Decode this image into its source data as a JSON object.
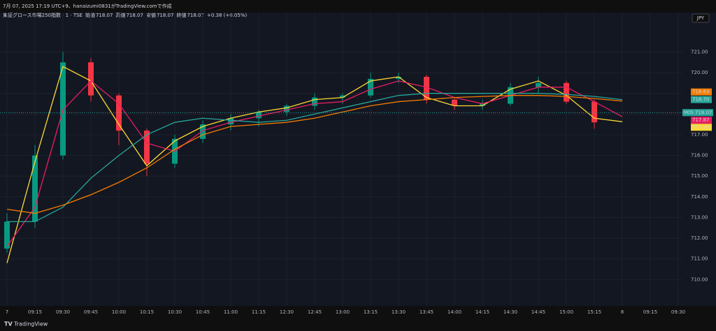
{
  "header": "7月 07, 2025 17:19 UTC+9、hanaizumi0831がTradingView.comで作成",
  "footer": "TradingView",
  "chart_data": {
    "type": "candlestick",
    "legend": {
      "symbol": "東証グロース市場250指数 · 1 · TSE",
      "fields": [
        {
          "label": "始値",
          "value": 718.07
        },
        {
          "label": "高値",
          "value": 718.07
        },
        {
          "label": "安値",
          "value": 718.07
        },
        {
          "label": "終値",
          "value": 718.07
        }
      ],
      "change": "+0.38 (+0.05%)"
    },
    "currency": "JPY",
    "categories": [
      "7",
      "09:15",
      "09:30",
      "09:45",
      "10:00",
      "10:15",
      "10:30",
      "10:45",
      "11:00",
      "11:15",
      "12:30",
      "12:45",
      "13:00",
      "13:15",
      "13:30",
      "13:45",
      "14:00",
      "14:15",
      "14:30",
      "14:45",
      "15:00",
      "15:15",
      "8",
      "09:15",
      "09:30"
    ],
    "open": [
      711.5,
      712.8,
      716.0,
      720.5,
      718.9,
      717.2,
      715.6,
      716.8,
      717.5,
      717.8,
      718.1,
      718.4,
      718.8,
      718.9,
      719.7,
      719.8,
      718.7,
      718.4,
      718.5,
      719.3,
      719.5,
      718.6,
      null,
      null,
      null
    ],
    "high": [
      713.2,
      716.5,
      721.0,
      720.7,
      719.0,
      717.3,
      717.0,
      717.7,
      718.0,
      718.2,
      718.5,
      719.0,
      719.0,
      720.0,
      720.0,
      719.9,
      718.8,
      718.7,
      719.5,
      719.8,
      719.6,
      718.7,
      null,
      null,
      null
    ],
    "low": [
      711.3,
      712.5,
      715.8,
      718.6,
      716.5,
      715.0,
      715.4,
      716.6,
      717.2,
      717.4,
      717.9,
      718.2,
      718.5,
      718.8,
      719.5,
      718.5,
      718.2,
      718.2,
      718.4,
      719.0,
      718.5,
      717.3,
      null,
      null,
      null
    ],
    "close": [
      712.8,
      716.0,
      720.5,
      718.9,
      717.2,
      715.6,
      716.8,
      717.5,
      717.8,
      718.1,
      718.4,
      718.8,
      718.9,
      719.7,
      719.8,
      718.7,
      718.4,
      718.5,
      719.3,
      719.5,
      718.6,
      717.6,
      null,
      null,
      null
    ],
    "up_color": "#089981",
    "down_color": "#f23645",
    "series": [
      {
        "color": "#fdd835",
        "values": [
          710.8,
          715.7,
          720.3,
          719.6,
          717.5,
          715.5,
          716.7,
          717.4,
          717.8,
          718.1,
          718.3,
          718.7,
          718.8,
          719.6,
          719.8,
          718.8,
          718.4,
          718.4,
          719.2,
          719.6,
          718.9,
          717.8,
          717.63,
          null,
          null
        ],
        "tag": {
          "value": 717.63,
          "label": "717.63"
        }
      },
      {
        "color": "#e91e63",
        "values": [
          711.6,
          713.5,
          718.2,
          719.6,
          718.5,
          716.6,
          716.2,
          717.2,
          717.6,
          717.9,
          718.2,
          718.5,
          718.6,
          719.2,
          719.6,
          719.3,
          718.8,
          718.5,
          718.9,
          719.3,
          719.3,
          718.6,
          717.87,
          null,
          null
        ],
        "tag": {
          "value": 717.87,
          "label": "717.87"
        }
      },
      {
        "color": "#26a69a",
        "values": [
          712.8,
          712.8,
          713.5,
          714.9,
          716.0,
          717.0,
          717.6,
          717.8,
          717.7,
          717.6,
          717.7,
          718.0,
          718.3,
          718.6,
          718.9,
          719.0,
          719.0,
          719.0,
          719.0,
          719.0,
          718.95,
          718.85,
          718.7,
          null,
          null
        ],
        "tag": {
          "value": 718.7,
          "label": "718.70"
        }
      },
      {
        "color": "#f57c00",
        "values": [
          713.4,
          713.2,
          713.6,
          714.1,
          714.7,
          715.4,
          716.3,
          717.0,
          717.4,
          717.5,
          717.6,
          717.8,
          718.1,
          718.4,
          718.6,
          718.7,
          718.8,
          718.85,
          718.9,
          718.9,
          718.85,
          718.75,
          718.63,
          null,
          null
        ],
        "tag": {
          "value": 718.63,
          "label": "718.63"
        }
      }
    ],
    "last_price": {
      "label": "MOS",
      "value": 718.07,
      "color": "#26a69a"
    },
    "ylim": [
      709.0,
      722.5
    ],
    "yticks": [
      {
        "value": 710,
        "label": "710.00"
      },
      {
        "value": 711,
        "label": "711.00"
      },
      {
        "value": 712,
        "label": "712.00"
      },
      {
        "value": 713,
        "label": "713.00"
      },
      {
        "value": 714,
        "label": "714.00"
      },
      {
        "value": 715,
        "label": "715.00"
      },
      {
        "value": 716,
        "label": "716.00"
      },
      {
        "value": 717,
        "label": "717.00"
      },
      {
        "value": 718,
        "label": "718.00"
      },
      {
        "value": 719,
        "label": "719.00"
      },
      {
        "value": 720,
        "label": "720.00"
      },
      {
        "value": 721,
        "label": "721.00"
      }
    ],
    "grid": true
  }
}
